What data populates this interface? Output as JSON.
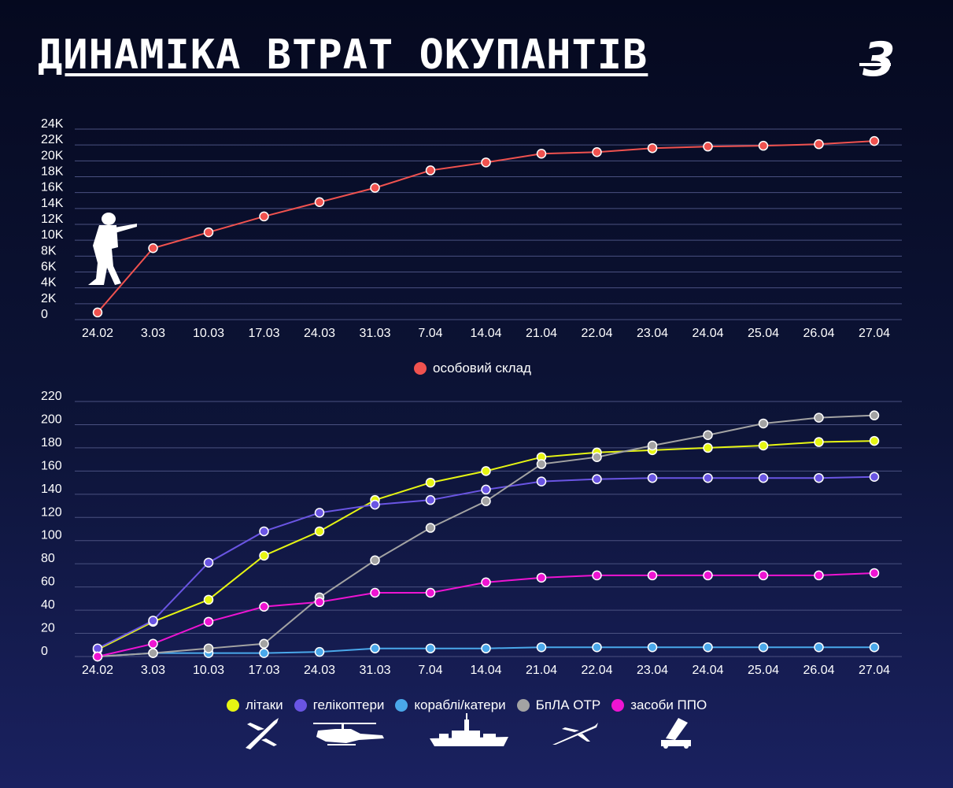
{
  "title": "ДИНАМІКА ВТРАТ ОКУПАНТІВ",
  "logo_text": "3",
  "colors": {
    "grid": "#4a5180",
    "text": "#ffffff"
  },
  "chart_data": [
    {
      "type": "line",
      "categories": [
        "24.02",
        "3.03",
        "10.03",
        "17.03",
        "24.03",
        "31.03",
        "7.04",
        "14.04",
        "21.04",
        "22.04",
        "23.04",
        "24.04",
        "25.04",
        "26.04",
        "27.04"
      ],
      "ylim": [
        0,
        24000
      ],
      "yticks": [
        0,
        2000,
        4000,
        6000,
        8000,
        10000,
        12000,
        14000,
        16000,
        18000,
        20000,
        22000,
        24000
      ],
      "yticklabels": [
        "0",
        "2K",
        "4K",
        "6K",
        "8K",
        "10K",
        "12K",
        "14K",
        "16K",
        "18K",
        "20K",
        "22K",
        "24K"
      ],
      "series": [
        {
          "name": "особовий склад",
          "color": "#f0524f",
          "values": [
            900,
            9000,
            11000,
            13000,
            14800,
            16600,
            18800,
            19800,
            20900,
            21100,
            21600,
            21800,
            21900,
            22100,
            22500
          ]
        }
      ],
      "legend_position": "bottom"
    },
    {
      "type": "line",
      "categories": [
        "24.02",
        "3.03",
        "10.03",
        "17.03",
        "24.03",
        "31.03",
        "7.04",
        "14.04",
        "21.04",
        "22.04",
        "23.04",
        "24.04",
        "25.04",
        "26.04",
        "27.04"
      ],
      "ylim": [
        0,
        220
      ],
      "yticks": [
        0,
        20,
        40,
        60,
        80,
        100,
        120,
        140,
        160,
        180,
        200,
        220
      ],
      "yticklabels": [
        "0",
        "20",
        "40",
        "60",
        "80",
        "100",
        "120",
        "140",
        "160",
        "180",
        "200",
        "220"
      ],
      "series": [
        {
          "name": "літаки",
          "color": "#e6f513",
          "values": [
            6,
            30,
            49,
            87,
            108,
            135,
            150,
            160,
            172,
            176,
            178,
            180,
            182,
            185,
            186
          ]
        },
        {
          "name": "гелікоптери",
          "color": "#6a55e3",
          "values": [
            7,
            31,
            81,
            108,
            124,
            131,
            135,
            144,
            151,
            153,
            154,
            154,
            154,
            154,
            155
          ]
        },
        {
          "name": "кораблі/катери",
          "color": "#4aa8ea",
          "values": [
            0,
            3,
            3,
            3,
            4,
            7,
            7,
            7,
            8,
            8,
            8,
            8,
            8,
            8,
            8
          ]
        },
        {
          "name": "БпЛА ОТР",
          "color": "#a3a3a3",
          "values": [
            0,
            3,
            7,
            11,
            51,
            83,
            111,
            134,
            166,
            172,
            182,
            191,
            201,
            206,
            208
          ]
        },
        {
          "name": "засоби ППО",
          "color": "#ee14d2",
          "values": [
            0,
            11,
            30,
            43,
            47,
            55,
            55,
            64,
            68,
            70,
            70,
            70,
            70,
            70,
            72
          ]
        }
      ],
      "legend_position": "bottom"
    }
  ],
  "icons": [
    "soldier-icon",
    "plane-icon",
    "helicopter-icon",
    "ship-icon",
    "drone-icon",
    "air-defense-icon"
  ]
}
